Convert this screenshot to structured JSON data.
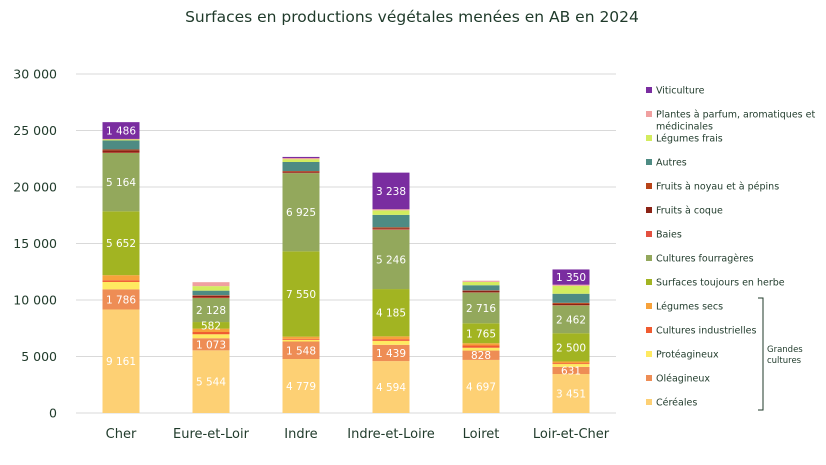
{
  "chart_data": {
    "type": "bar",
    "stacked": true,
    "title": "Surfaces en productions végétales menées en AB en 2024",
    "xlabel": "",
    "ylabel": "",
    "ylim": [
      0,
      30000
    ],
    "yticks": [
      0,
      5000,
      10000,
      15000,
      20000,
      25000,
      30000
    ],
    "ytick_labels": [
      "0",
      "5 000",
      "10 000",
      "15 000",
      "20 000",
      "25 000",
      "30 000"
    ],
    "grid": true,
    "legend_position": "right",
    "group_bracket_label": "Grandes cultures",
    "group_bracket_members": [
      "Légumes secs",
      "Cultures industrielles",
      "Protéagineux",
      "Oléagineux",
      "Céréales"
    ],
    "categories": [
      "Cher",
      "Eure-et-Loir",
      "Indre",
      "Indre-et-Loire",
      "Loiret",
      "Loir-et-Cher"
    ],
    "series": [
      {
        "name": "Céréales",
        "color": "#FDD074",
        "label_color": "#ffffff",
        "values": [
          9161,
          5544,
          4779,
          4594,
          4697,
          3451
        ],
        "labels": [
          "9 161",
          "5 544",
          "4 779",
          "4 594",
          "4 697",
          "3 451"
        ]
      },
      {
        "name": "Oléagineux",
        "color": "#EE8D55",
        "label_color": "#ffffff",
        "values": [
          1786,
          1073,
          1548,
          1439,
          828,
          631
        ],
        "labels": [
          "1 786",
          "1 073",
          "1 548",
          "1 439",
          "828",
          "631"
        ]
      },
      {
        "name": "Protéagineux",
        "color": "#FFEA61",
        "label_color": "#ffffff",
        "values": [
          650,
          350,
          150,
          350,
          250,
          250
        ],
        "labels": [
          "",
          "",
          "",
          "",
          "",
          ""
        ]
      },
      {
        "name": "Cultures industrielles",
        "color": "#F05B30",
        "label_color": "#ffffff",
        "values": [
          150,
          200,
          80,
          150,
          200,
          80
        ],
        "labels": [
          "",
          "",
          "",
          "",
          "",
          ""
        ]
      },
      {
        "name": "Légumes secs",
        "color": "#F7A23B",
        "label_color": "#ffffff",
        "values": [
          450,
          300,
          200,
          250,
          200,
          150
        ],
        "labels": [
          "",
          "",
          "",
          "",
          "",
          ""
        ]
      },
      {
        "name": "Surfaces toujours en herbe",
        "color": "#A2B422",
        "label_color": "#ffffff",
        "values": [
          5652,
          582,
          7550,
          4185,
          1765,
          2500
        ],
        "labels": [
          "5 652",
          "582",
          "7 550",
          "4 185",
          "1 765",
          "2 500"
        ]
      },
      {
        "name": "Cultures fourragères",
        "color": "#93A85C",
        "label_color": "#ffffff",
        "values": [
          5164,
          2128,
          6925,
          5246,
          2716,
          2462
        ],
        "labels": [
          "5 164",
          "2 128",
          "6 925",
          "5 246",
          "2 716",
          "2 462"
        ]
      },
      {
        "name": "Baies",
        "color": "#E35040",
        "label_color": "#ffffff",
        "values": [
          30,
          50,
          30,
          40,
          20,
          30
        ],
        "labels": [
          "",
          "",
          "",
          "",
          "",
          ""
        ]
      },
      {
        "name": "Fruits à coque",
        "color": "#8B2215",
        "label_color": "#ffffff",
        "values": [
          200,
          150,
          100,
          100,
          150,
          100
        ],
        "labels": [
          "",
          "",
          "",
          "",
          "",
          ""
        ]
      },
      {
        "name": "Fruits à noyau et à pépins",
        "color": "#B84418",
        "label_color": "#ffffff",
        "values": [
          80,
          50,
          50,
          80,
          30,
          100
        ],
        "labels": [
          "",
          "",
          "",
          "",
          "",
          ""
        ]
      },
      {
        "name": "Autres",
        "color": "#4E8B83",
        "label_color": "#ffffff",
        "values": [
          800,
          400,
          800,
          1100,
          450,
          800
        ],
        "labels": [
          "",
          "",
          "",
          "",
          "",
          ""
        ]
      },
      {
        "name": "Légumes frais",
        "color": "#D3EC5E",
        "label_color": "#ffffff",
        "values": [
          80,
          400,
          250,
          400,
          300,
          700
        ],
        "labels": [
          "",
          "",
          "",
          "",
          "",
          ""
        ]
      },
      {
        "name": "Plantes à parfum, aromatiques et médicinales",
        "color": "#F0A0A0",
        "label_color": "#ffffff",
        "values": [
          50,
          350,
          100,
          100,
          100,
          100
        ],
        "labels": [
          "",
          "",
          "",
          "",
          "",
          ""
        ]
      },
      {
        "name": "Viticulture",
        "color": "#7A2DA0",
        "label_color": "#ffffff",
        "values": [
          1486,
          0,
          100,
          3238,
          0,
          1350
        ],
        "labels": [
          "1 486",
          "",
          "",
          "3 238",
          "",
          "1 350"
        ]
      }
    ]
  }
}
